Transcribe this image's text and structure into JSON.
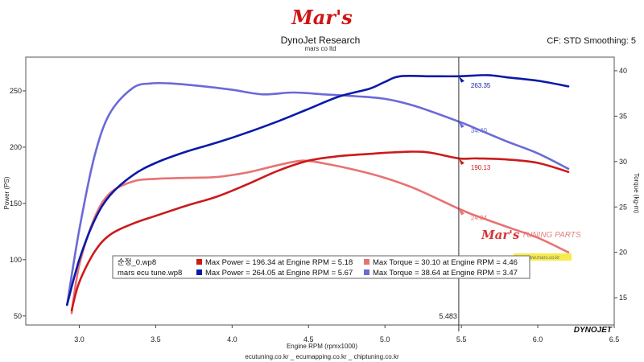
{
  "header": {
    "logo_text": "Mar's",
    "title": "DynoJet Research",
    "subtitle": "mars co ltd",
    "cf_text": "CF: STD Smoothing: 5"
  },
  "footer": {
    "text": "ecutuning.co.kr _ ecumapping.co.kr _ chiptuning.co.kr",
    "brand": "DYNOJET"
  },
  "watermark": {
    "logo": "Mar's",
    "text": "TUNING PARTS",
    "url": "www.mars.co.kr"
  },
  "colors": {
    "stock_power": "#cc1a1a",
    "stock_torque": "#e87272",
    "tune_power": "#0a1aa8",
    "tune_torque": "#6a6ad8",
    "cursor": "#333333"
  },
  "cursor": {
    "x": 5.483,
    "label": "5.483"
  },
  "chart_data": {
    "type": "line",
    "xlabel": "Engine RPM (rpmx1000)",
    "ylabel_left": "Power (PS)",
    "ylabel_right": "Torque (kg-m)",
    "xlim": [
      2.65,
      6.5
    ],
    "ylim_left": [
      42,
      280
    ],
    "ylim_right": [
      12.0,
      41.5
    ],
    "x_ticks": [
      3.0,
      3.5,
      4.0,
      4.5,
      5.0,
      5.5,
      6.0,
      6.5
    ],
    "x_tick_labels": [
      "3.0",
      "3.5",
      "4.0",
      "4.5",
      "5.0",
      "5.5",
      "6.0",
      "6.5"
    ],
    "y_left_ticks": [
      50,
      100,
      150,
      200,
      250
    ],
    "y_right_ticks": [
      15,
      20,
      25,
      30,
      35,
      40
    ],
    "grid": false,
    "legend_placement": "bottom-left",
    "series": [
      {
        "name": "순정_0.wp8",
        "axis": "left",
        "key": "stock_power",
        "legend": "Max Power = 196.34 at Engine RPM = 5.18",
        "cursor_label": "190.13",
        "x": [
          2.95,
          3.0,
          3.1,
          3.2,
          3.35,
          3.5,
          3.7,
          3.9,
          4.1,
          4.3,
          4.5,
          4.7,
          4.9,
          5.0,
          5.18,
          5.3,
          5.483,
          5.6,
          5.8,
          6.0,
          6.2
        ],
        "y": [
          55,
          80,
          107,
          122,
          132,
          139,
          148,
          156,
          167,
          179,
          188,
          192,
          194,
          195,
          196,
          195,
          190,
          190,
          189,
          186,
          178
        ]
      },
      {
        "name": "mars ecu tune.wp8",
        "axis": "left",
        "key": "tune_power",
        "legend": "Max Power = 264.05 at Engine RPM = 5.67",
        "cursor_label": "263.35",
        "x": [
          2.92,
          3.0,
          3.1,
          3.2,
          3.35,
          3.5,
          3.7,
          3.9,
          4.1,
          4.3,
          4.5,
          4.7,
          4.9,
          5.0,
          5.1,
          5.3,
          5.483,
          5.67,
          5.8,
          6.0,
          6.2
        ],
        "y": [
          60,
          100,
          135,
          157,
          175,
          186,
          196,
          204,
          213,
          223,
          234,
          245,
          252,
          258,
          263,
          263,
          263,
          264,
          262,
          259,
          254
        ]
      },
      {
        "name": "순정_0.wp8",
        "axis": "right",
        "key": "stock_torque",
        "legend": "Max Torque = 30.10 at Engine RPM = 4.46",
        "cursor_label": "24.84",
        "x": [
          2.95,
          3.0,
          3.1,
          3.2,
          3.35,
          3.5,
          3.7,
          3.9,
          4.1,
          4.3,
          4.46,
          4.6,
          4.8,
          5.0,
          5.2,
          5.483,
          5.6,
          5.8,
          6.0,
          6.2
        ],
        "y": [
          13.3,
          18.6,
          23.8,
          26.5,
          27.8,
          28.1,
          28.2,
          28.3,
          28.8,
          29.6,
          30.1,
          29.8,
          29.1,
          28.2,
          27.0,
          24.8,
          24.0,
          22.8,
          21.6,
          20.0
        ]
      },
      {
        "name": "mars ecu tune.wp8",
        "axis": "right",
        "key": "tune_torque",
        "legend": "Max Torque = 38.64 at Engine RPM = 3.47",
        "cursor_label": "34.40",
        "x": [
          2.92,
          3.0,
          3.1,
          3.2,
          3.35,
          3.47,
          3.6,
          3.8,
          4.0,
          4.2,
          4.4,
          4.6,
          4.8,
          5.0,
          5.2,
          5.483,
          5.6,
          5.8,
          6.0,
          6.2
        ],
        "y": [
          14.2,
          22.5,
          30.6,
          35.3,
          38.1,
          38.6,
          38.6,
          38.3,
          37.9,
          37.4,
          37.6,
          37.4,
          37.2,
          36.9,
          36.1,
          34.4,
          33.6,
          32.2,
          30.9,
          29.2
        ]
      }
    ]
  }
}
